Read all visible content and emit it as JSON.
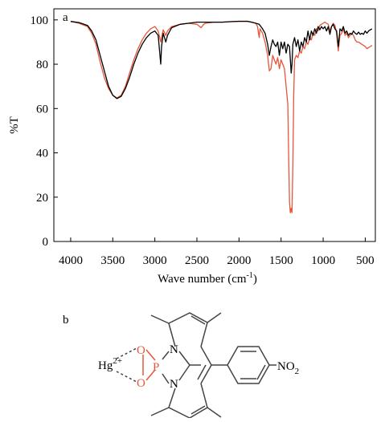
{
  "panel_a_label": "a",
  "panel_b_label": "b",
  "chart_data": {
    "type": "line",
    "xlabel": "Wave number (cm",
    "xlabel_sup": "-1",
    "xlabel_close": ")",
    "ylabel": "%T",
    "xlim": [
      4200,
      380
    ],
    "ylim": [
      0,
      105
    ],
    "x_ticks": [
      4000,
      3500,
      3000,
      2500,
      2000,
      1500,
      1000,
      500
    ],
    "y_ticks": [
      0,
      20,
      40,
      60,
      80,
      100
    ],
    "grid": false,
    "series": [
      {
        "color": "#000000",
        "points": [
          [
            4000,
            99.3
          ],
          [
            3900,
            98.8
          ],
          [
            3800,
            97.5
          ],
          [
            3750,
            95
          ],
          [
            3700,
            91
          ],
          [
            3650,
            84
          ],
          [
            3600,
            77
          ],
          [
            3550,
            70
          ],
          [
            3500,
            66
          ],
          [
            3450,
            64.5
          ],
          [
            3400,
            65.5
          ],
          [
            3350,
            69
          ],
          [
            3300,
            74
          ],
          [
            3250,
            80
          ],
          [
            3200,
            85
          ],
          [
            3150,
            89
          ],
          [
            3100,
            92
          ],
          [
            3050,
            94
          ],
          [
            3000,
            95
          ],
          [
            2960,
            93
          ],
          [
            2930,
            80
          ],
          [
            2920,
            88
          ],
          [
            2900,
            94
          ],
          [
            2870,
            90
          ],
          [
            2850,
            93
          ],
          [
            2800,
            96.5
          ],
          [
            2700,
            98
          ],
          [
            2600,
            98.5
          ],
          [
            2500,
            99
          ],
          [
            2400,
            99
          ],
          [
            2300,
            99
          ],
          [
            2200,
            99
          ],
          [
            2100,
            99.2
          ],
          [
            2000,
            99.4
          ],
          [
            1900,
            99.4
          ],
          [
            1850,
            99
          ],
          [
            1800,
            98.5
          ],
          [
            1760,
            98
          ],
          [
            1720,
            96
          ],
          [
            1690,
            94
          ],
          [
            1660,
            89
          ],
          [
            1640,
            84
          ],
          [
            1620,
            88
          ],
          [
            1600,
            91
          ],
          [
            1580,
            89
          ],
          [
            1560,
            88
          ],
          [
            1540,
            90
          ],
          [
            1520,
            84
          ],
          [
            1500,
            90
          ],
          [
            1480,
            87
          ],
          [
            1460,
            90
          ],
          [
            1440,
            85
          ],
          [
            1420,
            89
          ],
          [
            1400,
            88
          ],
          [
            1380,
            76
          ],
          [
            1370,
            80
          ],
          [
            1360,
            89
          ],
          [
            1340,
            92
          ],
          [
            1320,
            88
          ],
          [
            1300,
            91
          ],
          [
            1280,
            86
          ],
          [
            1260,
            90
          ],
          [
            1240,
            88
          ],
          [
            1220,
            92
          ],
          [
            1200,
            90
          ],
          [
            1180,
            95
          ],
          [
            1160,
            91
          ],
          [
            1140,
            95
          ],
          [
            1120,
            93
          ],
          [
            1100,
            96
          ],
          [
            1080,
            94
          ],
          [
            1060,
            97
          ],
          [
            1040,
            95.5
          ],
          [
            1020,
            97
          ],
          [
            1000,
            96
          ],
          [
            980,
            97
          ],
          [
            960,
            95
          ],
          [
            940,
            97
          ],
          [
            920,
            93.5
          ],
          [
            900,
            97
          ],
          [
            880,
            98
          ],
          [
            860,
            96
          ],
          [
            840,
            95
          ],
          [
            820,
            88
          ],
          [
            800,
            96
          ],
          [
            780,
            95
          ],
          [
            760,
            97
          ],
          [
            740,
            94
          ],
          [
            720,
            95
          ],
          [
            700,
            93
          ],
          [
            680,
            94
          ],
          [
            660,
            93.5
          ],
          [
            640,
            95
          ],
          [
            620,
            94
          ],
          [
            600,
            93.5
          ],
          [
            580,
            94.5
          ],
          [
            560,
            93.5
          ],
          [
            540,
            94
          ],
          [
            520,
            93.5
          ],
          [
            500,
            95
          ],
          [
            480,
            94
          ],
          [
            460,
            95
          ],
          [
            440,
            95.5
          ],
          [
            420,
            96
          ]
        ]
      },
      {
        "color": "#e8553a",
        "points": [
          [
            4000,
            99.3
          ],
          [
            3900,
            98.5
          ],
          [
            3800,
            97
          ],
          [
            3750,
            94
          ],
          [
            3700,
            89
          ],
          [
            3650,
            81
          ],
          [
            3600,
            74
          ],
          [
            3550,
            69
          ],
          [
            3500,
            66
          ],
          [
            3450,
            64.8
          ],
          [
            3400,
            66
          ],
          [
            3350,
            70
          ],
          [
            3300,
            76
          ],
          [
            3250,
            82
          ],
          [
            3200,
            87
          ],
          [
            3150,
            91
          ],
          [
            3100,
            94
          ],
          [
            3050,
            96
          ],
          [
            3000,
            97
          ],
          [
            2960,
            95
          ],
          [
            2930,
            90
          ],
          [
            2920,
            92
          ],
          [
            2900,
            95.5
          ],
          [
            2870,
            93
          ],
          [
            2850,
            95
          ],
          [
            2800,
            97
          ],
          [
            2700,
            98
          ],
          [
            2600,
            98.5
          ],
          [
            2500,
            98
          ],
          [
            2450,
            96.5
          ],
          [
            2420,
            98
          ],
          [
            2400,
            98.5
          ],
          [
            2300,
            99
          ],
          [
            2200,
            99
          ],
          [
            2100,
            99.2
          ],
          [
            2000,
            99.3
          ],
          [
            1900,
            99.3
          ],
          [
            1850,
            99
          ],
          [
            1800,
            98.5
          ],
          [
            1780,
            97
          ],
          [
            1760,
            92
          ],
          [
            1750,
            96
          ],
          [
            1720,
            94
          ],
          [
            1690,
            90
          ],
          [
            1660,
            84
          ],
          [
            1640,
            77
          ],
          [
            1620,
            78
          ],
          [
            1600,
            84
          ],
          [
            1580,
            82
          ],
          [
            1560,
            80
          ],
          [
            1540,
            83
          ],
          [
            1520,
            78
          ],
          [
            1500,
            82
          ],
          [
            1480,
            80
          ],
          [
            1460,
            78
          ],
          [
            1440,
            70
          ],
          [
            1420,
            62
          ],
          [
            1410,
            40
          ],
          [
            1400,
            18
          ],
          [
            1390,
            13
          ],
          [
            1380,
            15
          ],
          [
            1370,
            13
          ],
          [
            1360,
            35
          ],
          [
            1350,
            65
          ],
          [
            1340,
            82
          ],
          [
            1320,
            84
          ],
          [
            1300,
            83
          ],
          [
            1280,
            86
          ],
          [
            1260,
            85
          ],
          [
            1240,
            88
          ],
          [
            1220,
            87
          ],
          [
            1200,
            90
          ],
          [
            1180,
            89
          ],
          [
            1160,
            92
          ],
          [
            1140,
            91
          ],
          [
            1120,
            94
          ],
          [
            1100,
            93
          ],
          [
            1080,
            96
          ],
          [
            1060,
            95
          ],
          [
            1040,
            97.5
          ],
          [
            1020,
            98
          ],
          [
            1000,
            98.5
          ],
          [
            980,
            99
          ],
          [
            960,
            98.5
          ],
          [
            940,
            98
          ],
          [
            920,
            95
          ],
          [
            900,
            97
          ],
          [
            880,
            98.5
          ],
          [
            860,
            97.5
          ],
          [
            840,
            94
          ],
          [
            820,
            86
          ],
          [
            800,
            93
          ],
          [
            780,
            94
          ],
          [
            760,
            96
          ],
          [
            740,
            93
          ],
          [
            720,
            94
          ],
          [
            700,
            92
          ],
          [
            680,
            93
          ],
          [
            660,
            94
          ],
          [
            640,
            93
          ],
          [
            620,
            91
          ],
          [
            600,
            90
          ],
          [
            580,
            90
          ],
          [
            560,
            89.5
          ],
          [
            540,
            89
          ],
          [
            520,
            88.5
          ],
          [
            500,
            88
          ],
          [
            480,
            87
          ],
          [
            460,
            87.5
          ],
          [
            440,
            88
          ],
          [
            420,
            88.5
          ]
        ]
      }
    ]
  },
  "structure": {
    "ion_base": "Hg",
    "ion_charge": "2+",
    "atoms": {
      "P": "P",
      "O_top": "O",
      "O_bottom": "O",
      "N_top": "N",
      "N_bottom": "N",
      "nitro_base": "NO",
      "nitro_sub": "2"
    },
    "colors": {
      "highlight": "#e8553a",
      "bond": "#444444"
    }
  }
}
